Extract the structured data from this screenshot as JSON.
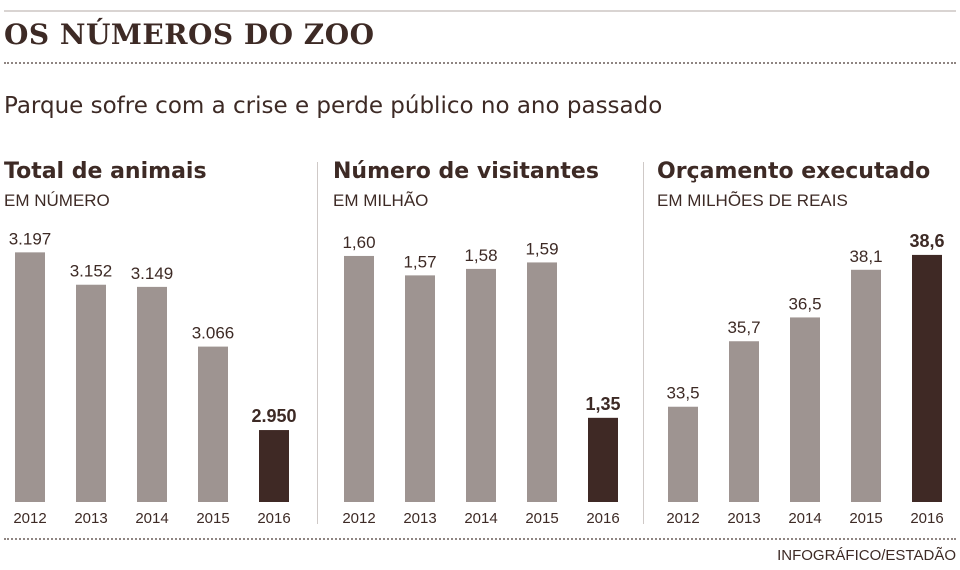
{
  "headline": "OS NÚMEROS DO ZOO",
  "subtitle": "Parque sofre com a crise e perde público no ano passado",
  "credit": "INFOGRÁFICO/ESTADÃO",
  "colors": {
    "bar": "#9e9491",
    "bar_highlight": "#3f2925",
    "text": "#3d2a25"
  },
  "chart_data": [
    {
      "type": "bar",
      "title": "Total de animais",
      "ylabel": "EM NÚMERO",
      "categories": [
        "2012",
        "2013",
        "2014",
        "2015",
        "2016"
      ],
      "values": [
        3197,
        3152,
        3149,
        3066,
        2950
      ],
      "value_labels": [
        "3.197",
        "3.152",
        "3.149",
        "3.066",
        "2.950"
      ],
      "highlight_index": 4,
      "ylim": [
        2850,
        3210
      ]
    },
    {
      "type": "bar",
      "title": "Número de visitantes",
      "ylabel": "EM MILHÃO",
      "categories": [
        "2012",
        "2013",
        "2014",
        "2015",
        "2016"
      ],
      "values": [
        1.6,
        1.57,
        1.58,
        1.59,
        1.35
      ],
      "value_labels": [
        "1,60",
        "1,57",
        "1,58",
        "1,59",
        "1,35"
      ],
      "highlight_index": 4,
      "ylim": [
        1.22,
        1.62
      ]
    },
    {
      "type": "bar",
      "title": "Orçamento executado",
      "ylabel": "EM MILHÕES DE REAIS",
      "categories": [
        "2012",
        "2013",
        "2014",
        "2015",
        "2016"
      ],
      "values": [
        33.5,
        35.7,
        36.5,
        38.1,
        38.6
      ],
      "value_labels": [
        "33,5",
        "35,7",
        "36,5",
        "38,1",
        "38,6"
      ],
      "highlight_index": 4,
      "ylim": [
        30.3,
        39.0
      ]
    }
  ]
}
